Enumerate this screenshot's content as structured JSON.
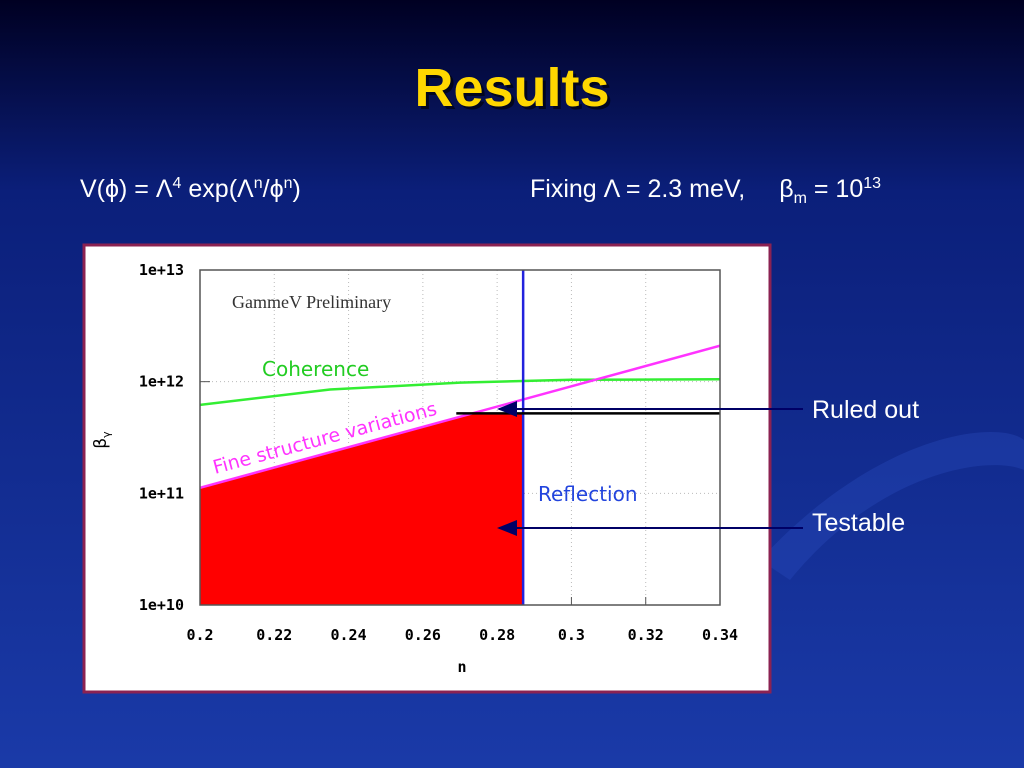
{
  "slide": {
    "title": "Results",
    "formula": [
      "V(ϕ) = Λ",
      "4",
      " exp(Λ",
      "n",
      "/ϕ",
      "n",
      ")"
    ],
    "fixing": [
      "Fixing Λ = 2.3 meV,",
      "β",
      "m",
      " = 10",
      "13"
    ],
    "callouts": [
      "Ruled out",
      "Testable"
    ]
  },
  "chart_data": {
    "type": "line",
    "xlabel": "n",
    "ylabel": [
      "β",
      "γ"
    ],
    "annotations": [
      "GammeV Preliminary",
      "Coherence",
      "Fine structure variations",
      "Reflection"
    ],
    "xlim": [
      0.2,
      0.34
    ],
    "xticks": [
      0.2,
      0.22,
      0.24,
      0.26,
      0.28,
      0.3,
      0.32,
      0.34
    ],
    "ylim": [
      10000000000.0,
      10000000000000.0
    ],
    "ylog": true,
    "yticks": [
      {
        "value": 10000000000.0,
        "label": "1e+10"
      },
      {
        "value": 100000000000.0,
        "label": "1e+11"
      },
      {
        "value": 1000000000000.0,
        "label": "1e+12"
      },
      {
        "value": 10000000000000.0,
        "label": "1e+13"
      }
    ],
    "grid": true,
    "series": [
      {
        "color": "#ff0000",
        "fill": true,
        "x": [
          0.2,
          0.273,
          0.287
        ],
        "values": [
          112000000000.0,
          520000000000.0,
          520000000000.0
        ]
      },
      {
        "color": "#33ee33",
        "x": [
          0.2,
          0.235,
          0.27,
          0.3,
          0.34
        ],
        "values": [
          620000000000.0,
          850000000000.0,
          980000000000.0,
          1040000000000.0,
          1050000000000.0
        ]
      },
      {
        "color": "#ff33ff",
        "x": [
          0.2,
          0.34
        ],
        "values": [
          112000000000.0,
          2100000000000.0
        ]
      },
      {
        "color": "#2222dd",
        "x": [
          0.287,
          0.287
        ],
        "values": [
          10000000000.0,
          10000000000000.0
        ]
      },
      {
        "color": "#000000",
        "x": [
          0.269,
          0.34
        ],
        "values": [
          520000000000.0,
          520000000000.0
        ]
      }
    ]
  }
}
